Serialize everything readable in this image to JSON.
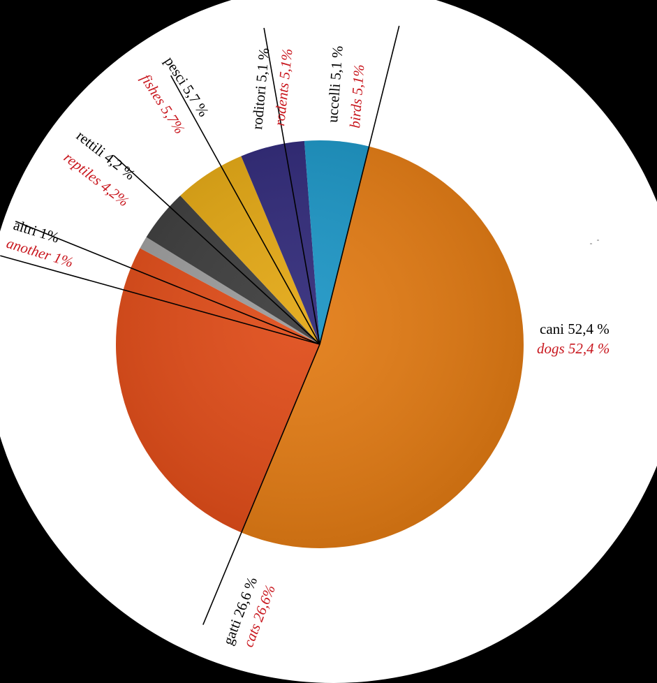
{
  "chart_data": {
    "type": "pie",
    "slices": [
      {
        "label_it": "cani 52,4 %",
        "label_en": "dogs 52,4 %",
        "value": 52.4,
        "color": "#e27a12"
      },
      {
        "label_it": "gatti 26,6 %",
        "label_en": "cats 26,6%",
        "value": 26.6,
        "color": "#df4a16"
      },
      {
        "label_it": "altri 1%",
        "label_en": "another 1%",
        "value": 1.0,
        "color": "#9a9a9a"
      },
      {
        "label_it": "rettili 4,2 %",
        "label_en": "reptiles 4,2%",
        "value": 4.2,
        "color": "#3a3a3a"
      },
      {
        "label_it": "pesci 5,7 %",
        "label_en": "fishes 5,7%",
        "value": 5.7,
        "color": "#e2a611"
      },
      {
        "label_it": "roditori 5,1 %",
        "label_en": "rodents 5,1%",
        "value": 5.1,
        "color": "#2e2777"
      },
      {
        "label_it": "uccelli 5,1 %",
        "label_en": "birds 5,1%",
        "value": 5.1,
        "color": "#1a94c4"
      }
    ],
    "label_color_it": "#000000",
    "label_color_en": "#c8161d"
  }
}
